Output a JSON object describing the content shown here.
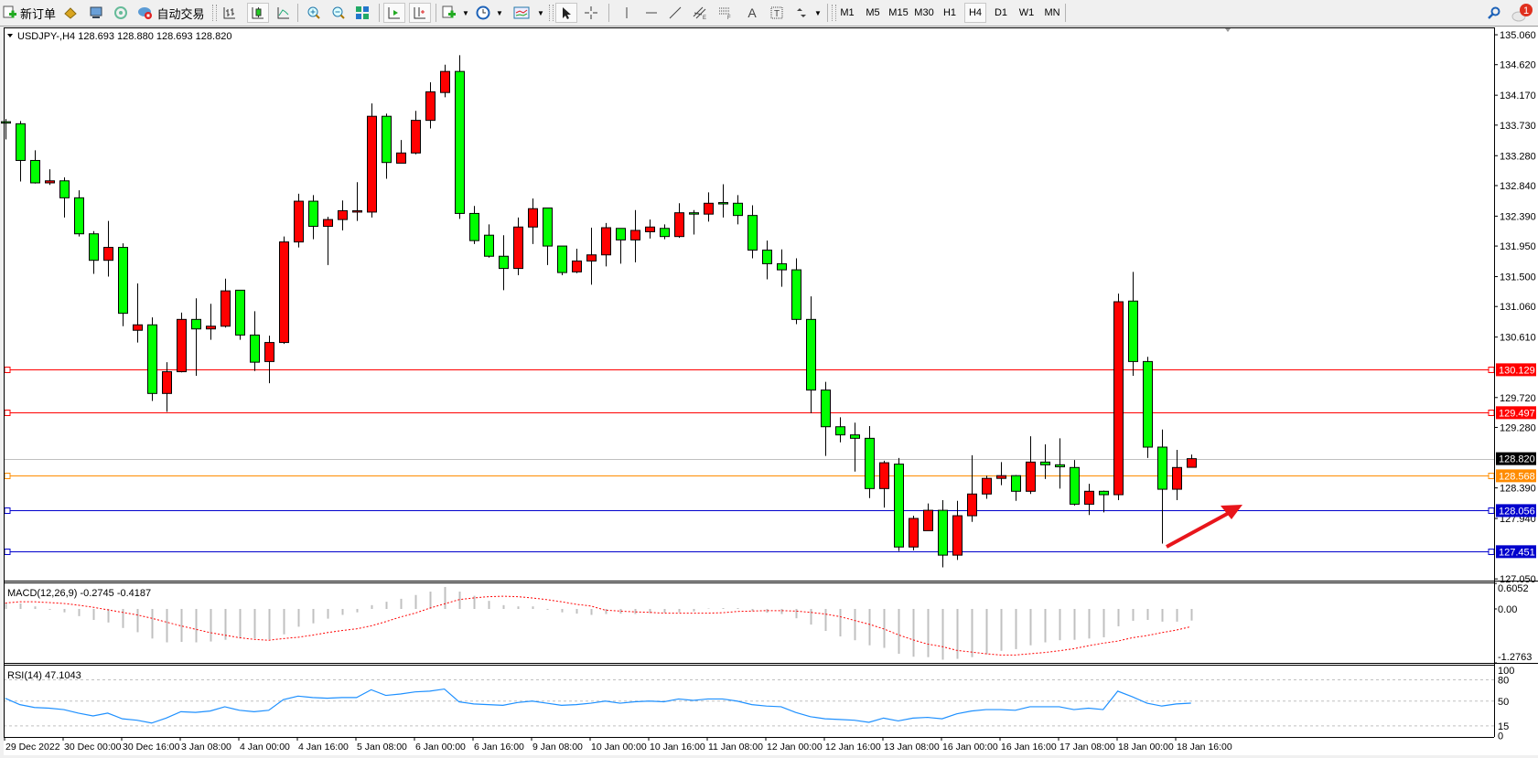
{
  "toolbar": {
    "new_order_label": "新订单",
    "autotrade_label": "自动交易",
    "timeframes": [
      "M1",
      "M5",
      "M15",
      "M30",
      "H1",
      "H4",
      "D1",
      "W1",
      "MN"
    ],
    "selected_timeframe": "H4",
    "text_tool_label": "A",
    "label_tool_label": "T",
    "notification_count": "1"
  },
  "chart": {
    "header": "USDJPY-,H4  128.693 128.880 128.693 128.820",
    "colors": {
      "bull": "#ff0000",
      "bear": "#00ff00",
      "outline": "#000000"
    },
    "price_ylim": [
      127.025,
      135.168
    ],
    "price_ticks": [
      "135.060",
      "134.620",
      "134.170",
      "133.730",
      "133.280",
      "132.840",
      "132.390",
      "131.950",
      "131.500",
      "131.060",
      "130.610",
      "129.720",
      "129.280",
      "128.390",
      "127.940",
      "127.050"
    ],
    "levels": [
      {
        "price": "130.129",
        "color": "#ff0000",
        "marker": true
      },
      {
        "price": "129.497",
        "color": "#ff0000",
        "marker": true
      },
      {
        "price": "128.820",
        "color": "#c0c0c0",
        "label_bg": "#000000",
        "marker": false
      },
      {
        "price": "128.568",
        "color": "#ff8c00",
        "marker": true
      },
      {
        "price": "128.056",
        "color": "#0000cd",
        "marker": true
      },
      {
        "price": "127.451",
        "color": "#0000cd",
        "marker": true
      }
    ],
    "time_labels": [
      "29 Dec 2022",
      "30 Dec 00:00",
      "30 Dec 16:00",
      "3 Jan 08:00",
      "4 Jan 00:00",
      "4 Jan 16:00",
      "5 Jan 08:00",
      "6 Jan 00:00",
      "6 Jan 16:00",
      "9 Jan 08:00",
      "10 Jan 00:00",
      "10 Jan 16:00",
      "11 Jan 08:00",
      "12 Jan 00:00",
      "12 Jan 16:00",
      "13 Jan 08:00",
      "16 Jan 00:00",
      "16 Jan 16:00",
      "17 Jan 08:00",
      "18 Jan 00:00",
      "18 Jan 16:00"
    ],
    "annotation_arrow_color": "#e8151b"
  },
  "chart_data": {
    "type": "candlestick",
    "symbol": "USDJPY-",
    "timeframe": "H4",
    "ohlc": [
      [
        133.78,
        133.82,
        133.52,
        133.76
      ],
      [
        133.75,
        133.79,
        132.9,
        133.21
      ],
      [
        133.21,
        133.36,
        132.87,
        132.88
      ],
      [
        132.88,
        133.08,
        132.85,
        132.91
      ],
      [
        132.91,
        132.96,
        132.37,
        132.66
      ],
      [
        132.66,
        132.77,
        132.09,
        132.13
      ],
      [
        132.13,
        132.17,
        131.54,
        131.74
      ],
      [
        131.74,
        132.32,
        131.5,
        131.93
      ],
      [
        131.93,
        131.99,
        130.77,
        130.96
      ],
      [
        130.71,
        131.4,
        130.53,
        130.79
      ],
      [
        130.79,
        130.9,
        129.67,
        129.78
      ],
      [
        129.78,
        130.24,
        129.51,
        130.1
      ],
      [
        130.1,
        130.97,
        130.09,
        130.87
      ],
      [
        130.87,
        131.18,
        130.04,
        130.73
      ],
      [
        130.73,
        131.1,
        130.57,
        130.77
      ],
      [
        130.77,
        131.47,
        130.75,
        131.29
      ],
      [
        131.3,
        131.3,
        130.57,
        130.64
      ],
      [
        130.64,
        130.99,
        130.11,
        130.24
      ],
      [
        130.25,
        130.63,
        129.93,
        130.53
      ],
      [
        130.53,
        132.09,
        130.51,
        132.01
      ],
      [
        132.01,
        132.72,
        131.93,
        132.61
      ],
      [
        132.61,
        132.7,
        132.05,
        132.24
      ],
      [
        132.24,
        132.38,
        131.67,
        132.34
      ],
      [
        132.34,
        132.62,
        132.18,
        132.47
      ],
      [
        132.45,
        132.89,
        132.32,
        132.47
      ],
      [
        132.45,
        134.05,
        132.37,
        133.86
      ],
      [
        133.86,
        133.9,
        132.94,
        133.18
      ],
      [
        133.17,
        133.51,
        133.17,
        133.32
      ],
      [
        133.32,
        133.94,
        133.3,
        133.8
      ],
      [
        133.8,
        134.36,
        133.68,
        134.22
      ],
      [
        134.21,
        134.62,
        134.14,
        134.52
      ],
      [
        134.52,
        134.76,
        132.35,
        132.43
      ],
      [
        132.43,
        132.54,
        131.98,
        132.03
      ],
      [
        132.11,
        132.27,
        131.78,
        131.8
      ],
      [
        131.8,
        132.11,
        131.3,
        131.62
      ],
      [
        131.62,
        132.37,
        131.52,
        132.23
      ],
      [
        132.23,
        132.65,
        131.98,
        132.5
      ],
      [
        132.51,
        132.51,
        131.67,
        131.95
      ],
      [
        131.95,
        131.95,
        131.52,
        131.56
      ],
      [
        131.57,
        131.91,
        131.55,
        131.73
      ],
      [
        131.73,
        132.22,
        131.38,
        131.82
      ],
      [
        131.82,
        132.29,
        131.65,
        132.22
      ],
      [
        132.21,
        132.21,
        131.69,
        132.04
      ],
      [
        132.04,
        132.48,
        131.71,
        132.18
      ],
      [
        132.16,
        132.34,
        132.06,
        132.23
      ],
      [
        132.21,
        132.27,
        132.05,
        132.09
      ],
      [
        132.09,
        132.58,
        132.07,
        132.44
      ],
      [
        132.44,
        132.48,
        132.12,
        132.42
      ],
      [
        132.42,
        132.74,
        132.31,
        132.58
      ],
      [
        132.59,
        132.86,
        132.37,
        132.58
      ],
      [
        132.58,
        132.7,
        132.27,
        132.4
      ],
      [
        132.4,
        132.55,
        131.77,
        131.89
      ],
      [
        131.89,
        132.03,
        131.46,
        131.69
      ],
      [
        131.69,
        131.9,
        131.35,
        131.6
      ],
      [
        131.6,
        131.77,
        130.8,
        130.87
      ],
      [
        130.87,
        131.21,
        129.49,
        129.83
      ],
      [
        129.83,
        129.95,
        128.86,
        129.29
      ],
      [
        129.29,
        129.43,
        129.06,
        129.17
      ],
      [
        129.17,
        129.35,
        128.63,
        129.12
      ],
      [
        129.12,
        129.3,
        128.24,
        128.38
      ],
      [
        128.38,
        128.79,
        128.1,
        128.76
      ],
      [
        128.74,
        128.83,
        127.46,
        127.52
      ],
      [
        127.52,
        127.98,
        127.47,
        127.94
      ],
      [
        127.76,
        128.16,
        127.76,
        128.06
      ],
      [
        128.06,
        128.21,
        127.22,
        127.4
      ],
      [
        127.4,
        128.2,
        127.33,
        127.98
      ],
      [
        127.98,
        128.87,
        127.89,
        128.3
      ],
      [
        128.3,
        128.57,
        128.23,
        128.53
      ],
      [
        128.53,
        128.77,
        128.43,
        128.57
      ],
      [
        128.57,
        128.58,
        128.2,
        128.34
      ],
      [
        128.34,
        129.15,
        128.3,
        128.77
      ],
      [
        128.77,
        129.03,
        128.52,
        128.73
      ],
      [
        128.73,
        129.12,
        128.38,
        128.7
      ],
      [
        128.69,
        128.8,
        128.13,
        128.15
      ],
      [
        128.15,
        128.45,
        127.99,
        128.34
      ],
      [
        128.34,
        128.35,
        128.03,
        128.29
      ],
      [
        128.29,
        131.25,
        128.21,
        131.13
      ],
      [
        131.14,
        131.57,
        130.04,
        130.25
      ],
      [
        130.25,
        130.32,
        128.83,
        128.99
      ],
      [
        128.99,
        129.25,
        127.57,
        128.37
      ],
      [
        128.37,
        128.95,
        128.21,
        128.69
      ],
      [
        128.693,
        128.88,
        128.693,
        128.82
      ]
    ],
    "macd": {
      "label": "MACD(12,26,9) -0.2745 -0.4187",
      "ylim": [
        -1.2763,
        0.6052
      ],
      "ticks": [
        "0.6052",
        "0.00",
        "-1.2763"
      ],
      "histogram_color": "#c0c0c0",
      "signal_color": "#ff0000",
      "histogram": [
        0.14,
        0.13,
        0.06,
        -0.02,
        -0.08,
        -0.17,
        -0.26,
        -0.32,
        -0.45,
        -0.55,
        -0.7,
        -0.79,
        -0.78,
        -0.79,
        -0.77,
        -0.73,
        -0.7,
        -0.7,
        -0.72,
        -0.6,
        -0.42,
        -0.34,
        -0.23,
        -0.14,
        -0.08,
        0.09,
        0.17,
        0.24,
        0.33,
        0.41,
        0.52,
        0.41,
        0.31,
        0.19,
        0.09,
        0.06,
        0.06,
        -0.02,
        -0.08,
        -0.11,
        -0.14,
        -0.12,
        -0.11,
        -0.12,
        -0.1,
        -0.09,
        -0.08,
        -0.06,
        0.01,
        0.02,
        0.02,
        -0.05,
        -0.09,
        -0.12,
        -0.22,
        -0.37,
        -0.52,
        -0.65,
        -0.74,
        -0.86,
        -0.92,
        -1.06,
        -1.13,
        -1.14,
        -1.2,
        -1.18,
        -1.14,
        -1.07,
        -0.99,
        -0.95,
        -0.86,
        -0.79,
        -0.74,
        -0.73,
        -0.7,
        -0.67,
        -0.41,
        -0.28,
        -0.26,
        -0.3,
        -0.3,
        -0.2745
      ],
      "signal": [
        0.14,
        0.17,
        0.17,
        0.15,
        0.13,
        0.09,
        0.04,
        -0.02,
        -0.08,
        -0.14,
        -0.22,
        -0.31,
        -0.4,
        -0.48,
        -0.56,
        -0.62,
        -0.68,
        -0.72,
        -0.74,
        -0.7,
        -0.67,
        -0.62,
        -0.56,
        -0.51,
        -0.47,
        -0.4,
        -0.3,
        -0.19,
        -0.1,
        0.02,
        0.12,
        0.22,
        0.26,
        0.29,
        0.3,
        0.29,
        0.26,
        0.22,
        0.17,
        0.11,
        0.07,
        -0.03,
        -0.05,
        -0.07,
        -0.08,
        -0.1,
        -0.1,
        -0.1,
        -0.1,
        -0.09,
        -0.06,
        -0.05,
        -0.04,
        -0.04,
        -0.05,
        -0.08,
        -0.12,
        -0.18,
        -0.27,
        -0.36,
        -0.47,
        -0.61,
        -0.73,
        -0.83,
        -0.89,
        -0.98,
        -1.02,
        -1.06,
        -1.09,
        -1.09,
        -1.06,
        -1.03,
        -0.99,
        -0.94,
        -0.87,
        -0.81,
        -0.76,
        -0.68,
        -0.63,
        -0.56,
        -0.5,
        -0.4187
      ]
    },
    "rsi": {
      "label": "RSI(14) 47.1043",
      "ylim": [
        0,
        100
      ],
      "ticks": [
        "100",
        "80",
        "50",
        "15",
        "0"
      ],
      "levels": [
        80,
        50,
        15
      ],
      "color": "#1e90ff",
      "values": [
        54,
        45,
        41,
        40,
        38,
        33,
        29,
        33,
        25,
        23,
        19,
        26,
        35,
        34,
        36,
        42,
        37,
        35,
        37,
        52,
        57,
        55,
        54,
        55,
        55,
        66,
        58,
        60,
        63,
        64,
        67,
        49,
        46,
        45,
        44,
        48,
        50,
        47,
        44,
        45,
        47,
        50,
        47,
        49,
        50,
        49,
        53,
        51,
        53,
        53,
        50,
        45,
        43,
        42,
        34,
        28,
        25,
        24,
        23,
        20,
        26,
        22,
        26,
        27,
        25,
        32,
        36,
        38,
        38,
        37,
        42,
        42,
        42,
        38,
        40,
        38,
        64,
        56,
        47,
        43,
        46,
        47.1043
      ]
    }
  }
}
